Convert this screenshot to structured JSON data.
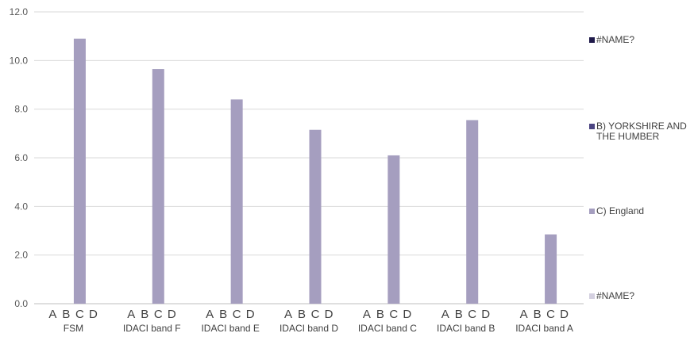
{
  "chart_data": {
    "type": "bar",
    "categories": [
      "FSM",
      "IDACI band F",
      "IDACI band E",
      "IDACI band D",
      "IDACI band C",
      "IDACI band B",
      "IDACI band A"
    ],
    "sub_labels": [
      "A",
      "B",
      "C",
      "D"
    ],
    "series": [
      {
        "name": "#NAME?",
        "color": "#1f1a4a",
        "values": [
          0,
          0,
          0,
          0,
          0,
          0,
          0
        ]
      },
      {
        "name": "B) YORKSHIRE AND THE HUMBER",
        "color": "#4b4582",
        "values": [
          0,
          0,
          0,
          0,
          0,
          0,
          0
        ]
      },
      {
        "name": "C) England",
        "color": "#a59ebf",
        "values": [
          10.9,
          9.65,
          8.4,
          7.15,
          6.1,
          7.55,
          2.85
        ]
      },
      {
        "name": "#NAME?",
        "color": "#d4d0e0",
        "values": [
          0,
          0,
          0,
          0,
          0,
          0,
          0
        ]
      }
    ],
    "yticks": [
      "0.0",
      "2.0",
      "4.0",
      "6.0",
      "8.0",
      "10.0",
      "12.0"
    ],
    "ylim": [
      0,
      12
    ],
    "grid": true,
    "legend_position": "right"
  }
}
